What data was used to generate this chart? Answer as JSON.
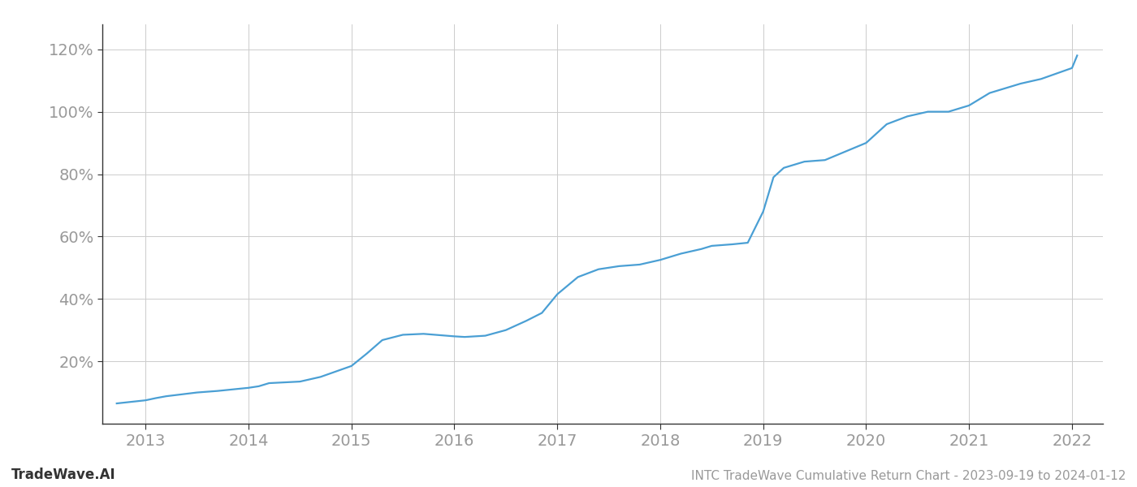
{
  "title": "INTC TradeWave Cumulative Return Chart - 2023-09-19 to 2024-01-12",
  "watermark": "TradeWave.AI",
  "line_color": "#4a9fd4",
  "background_color": "#ffffff",
  "grid_color": "#cccccc",
  "x_years": [
    2013,
    2014,
    2015,
    2016,
    2017,
    2018,
    2019,
    2020,
    2021,
    2022
  ],
  "data_x": [
    2012.72,
    2013.0,
    2013.1,
    2013.2,
    2013.5,
    2013.7,
    2014.0,
    2014.1,
    2014.2,
    2014.5,
    2014.7,
    2015.0,
    2015.15,
    2015.3,
    2015.5,
    2015.7,
    2016.0,
    2016.1,
    2016.3,
    2016.5,
    2016.7,
    2016.85,
    2017.0,
    2017.2,
    2017.4,
    2017.6,
    2017.8,
    2018.0,
    2018.2,
    2018.4,
    2018.5,
    2018.7,
    2018.85,
    2019.0,
    2019.1,
    2019.2,
    2019.4,
    2019.6,
    2020.0,
    2020.2,
    2020.4,
    2020.6,
    2020.8,
    2021.0,
    2021.2,
    2021.5,
    2021.7,
    2022.0,
    2022.05
  ],
  "data_y": [
    0.065,
    0.075,
    0.082,
    0.088,
    0.1,
    0.105,
    0.115,
    0.12,
    0.13,
    0.135,
    0.15,
    0.185,
    0.225,
    0.268,
    0.285,
    0.288,
    0.28,
    0.278,
    0.282,
    0.3,
    0.33,
    0.355,
    0.415,
    0.47,
    0.495,
    0.505,
    0.51,
    0.525,
    0.545,
    0.56,
    0.57,
    0.575,
    0.58,
    0.68,
    0.79,
    0.82,
    0.84,
    0.845,
    0.9,
    0.96,
    0.985,
    1.0,
    1.0,
    1.02,
    1.06,
    1.09,
    1.105,
    1.14,
    1.18
  ],
  "yticks": [
    0.2,
    0.4,
    0.6,
    0.8,
    1.0,
    1.2
  ],
  "ytick_labels": [
    "20%",
    "40%",
    "60%",
    "80%",
    "100%",
    "120%"
  ],
  "ylim": [
    0.0,
    1.28
  ],
  "xlim": [
    2012.58,
    2022.3
  ],
  "title_fontsize": 11,
  "watermark_fontsize": 12,
  "tick_fontsize": 14,
  "tick_color": "#999999",
  "spine_color": "#333333",
  "line_width": 1.6
}
